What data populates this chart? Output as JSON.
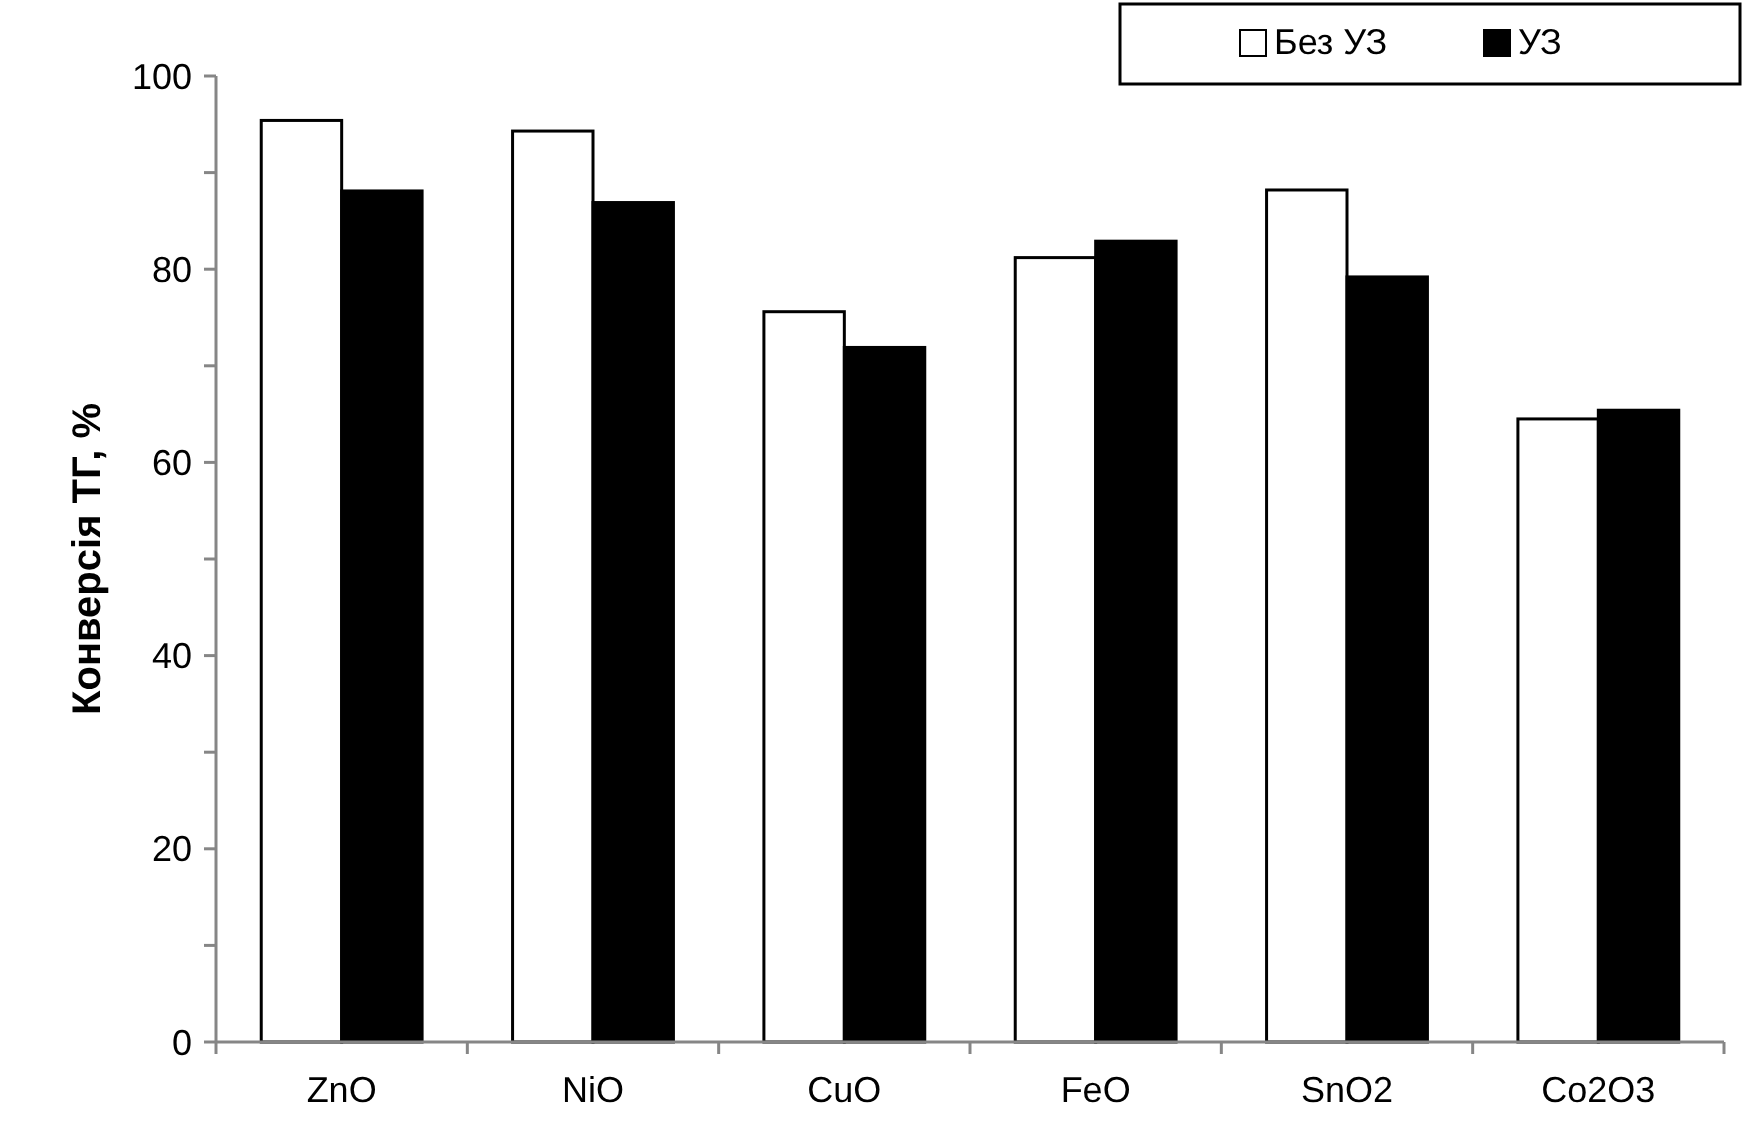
{
  "chart_data": {
    "type": "bar",
    "ylabel": "Конверсія ТГ, %",
    "categories": [
      "ZnO",
      "NiO",
      "CuO",
      "FeO",
      "SnO2",
      "Co2O3"
    ],
    "series": [
      {
        "name": "Без УЗ",
        "color": "#ffffff",
        "values": [
          95.4,
          94.3,
          75.6,
          81.2,
          88.2,
          64.5
        ]
      },
      {
        "name": "УЗ",
        "color": "#000000",
        "values": [
          88.1,
          86.9,
          71.9,
          82.9,
          79.2,
          65.4
        ]
      }
    ],
    "ylim": [
      0,
      100
    ],
    "yticks": [
      0,
      {
        "value": 10,
        "label": null
      },
      20,
      {
        "value": 30,
        "label": null
      },
      40,
      {
        "value": 50,
        "label": null
      },
      60,
      {
        "value": 70,
        "label": null
      },
      80,
      {
        "value": 90,
        "label": null
      },
      100
    ],
    "grid": false,
    "legend": "top right"
  }
}
